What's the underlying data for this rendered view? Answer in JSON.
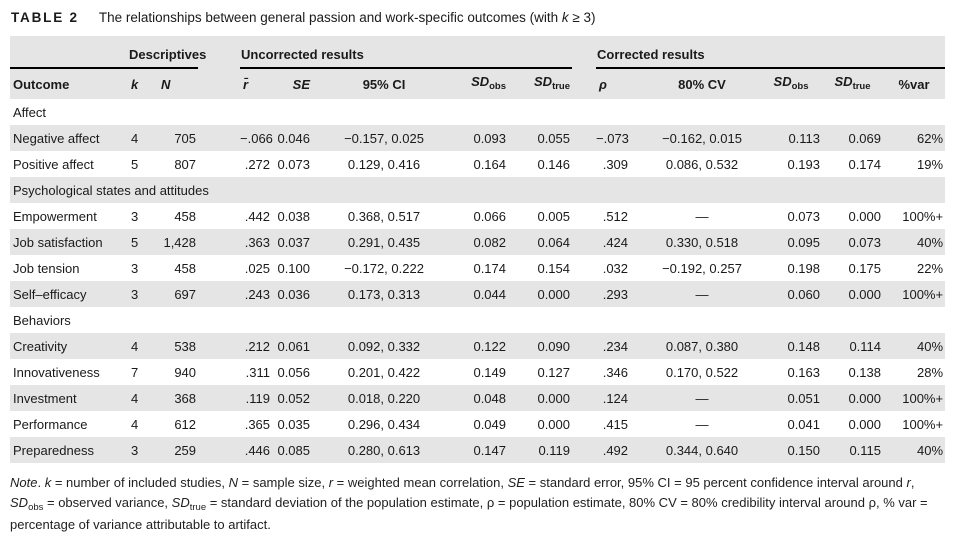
{
  "title": {
    "label": "TABLE 2",
    "caption_segments": [
      {
        "t": "The relationships between general passion and work-specific outcomes (with "
      },
      {
        "t": "k",
        "i": true
      },
      {
        "t": " ≥ 3)"
      }
    ]
  },
  "table": {
    "group_headers": {
      "descriptives": "Descriptives",
      "uncorrected": "Uncorrected results",
      "corrected": "Corrected results"
    },
    "column_headers": {
      "outcome": "Outcome",
      "k": "k",
      "n": "N",
      "r_bar": "r̄",
      "se": "SE",
      "ci95": "95% CI",
      "sd": "SD",
      "sub_obs": "obs",
      "sub_true": "true",
      "rho": "ρ",
      "cv80": "80% CV",
      "pct_var": "%var"
    },
    "sections": [
      {
        "label": "Affect",
        "rows": [
          {
            "outcome": "Negative affect",
            "k": "4",
            "n": "705",
            "r": "−.066",
            "se": "0.046",
            "ci": "−0.157, 0.025",
            "sd_obs_u": "0.093",
            "sd_true_u": "0.055",
            "rho": "−.073",
            "cv": "−0.162, 0.015",
            "sd_obs_c": "0.113",
            "sd_true_c": "0.069",
            "pct_var": "62%"
          },
          {
            "outcome": "Positive affect",
            "k": "5",
            "n": "807",
            "r": ".272",
            "se": "0.073",
            "ci": "0.129, 0.416",
            "sd_obs_u": "0.164",
            "sd_true_u": "0.146",
            "rho": ".309",
            "cv": "0.086, 0.532",
            "sd_obs_c": "0.193",
            "sd_true_c": "0.174",
            "pct_var": "19%"
          }
        ]
      },
      {
        "label": "Psychological states and attitudes",
        "rows": [
          {
            "outcome": "Empowerment",
            "k": "3",
            "n": "458",
            "r": ".442",
            "se": "0.038",
            "ci": "0.368, 0.517",
            "sd_obs_u": "0.066",
            "sd_true_u": "0.005",
            "rho": ".512",
            "cv": "—",
            "sd_obs_c": "0.073",
            "sd_true_c": "0.000",
            "pct_var": "100%+"
          },
          {
            "outcome": "Job satisfaction",
            "k": "5",
            "n": "1,428",
            "r": ".363",
            "se": "0.037",
            "ci": "0.291, 0.435",
            "sd_obs_u": "0.082",
            "sd_true_u": "0.064",
            "rho": ".424",
            "cv": "0.330, 0.518",
            "sd_obs_c": "0.095",
            "sd_true_c": "0.073",
            "pct_var": "40%"
          },
          {
            "outcome": "Job tension",
            "k": "3",
            "n": "458",
            "r": ".025",
            "se": "0.100",
            "ci": "−0.172, 0.222",
            "sd_obs_u": "0.174",
            "sd_true_u": "0.154",
            "rho": ".032",
            "cv": "−0.192, 0.257",
            "sd_obs_c": "0.198",
            "sd_true_c": "0.175",
            "pct_var": "22%"
          },
          {
            "outcome": "Self–efficacy",
            "k": "3",
            "n": "697",
            "r": ".243",
            "se": "0.036",
            "ci": "0.173, 0.313",
            "sd_obs_u": "0.044",
            "sd_true_u": "0.000",
            "rho": ".293",
            "cv": "—",
            "sd_obs_c": "0.060",
            "sd_true_c": "0.000",
            "pct_var": "100%+"
          }
        ]
      },
      {
        "label": "Behaviors",
        "rows": [
          {
            "outcome": "Creativity",
            "k": "4",
            "n": "538",
            "r": ".212",
            "se": "0.061",
            "ci": "0.092, 0.332",
            "sd_obs_u": "0.122",
            "sd_true_u": "0.090",
            "rho": ".234",
            "cv": "0.087, 0.380",
            "sd_obs_c": "0.148",
            "sd_true_c": "0.114",
            "pct_var": "40%"
          },
          {
            "outcome": "Innovativeness",
            "k": "7",
            "n": "940",
            "r": ".311",
            "se": "0.056",
            "ci": "0.201, 0.422",
            "sd_obs_u": "0.149",
            "sd_true_u": "0.127",
            "rho": ".346",
            "cv": "0.170, 0.522",
            "sd_obs_c": "0.163",
            "sd_true_c": "0.138",
            "pct_var": "28%"
          },
          {
            "outcome": "Investment",
            "k": "4",
            "n": "368",
            "r": ".119",
            "se": "0.052",
            "ci": "0.018, 0.220",
            "sd_obs_u": "0.048",
            "sd_true_u": "0.000",
            "rho": ".124",
            "cv": "—",
            "sd_obs_c": "0.051",
            "sd_true_c": "0.000",
            "pct_var": "100%+"
          },
          {
            "outcome": "Performance",
            "k": "4",
            "n": "612",
            "r": ".365",
            "se": "0.035",
            "ci": "0.296, 0.434",
            "sd_obs_u": "0.049",
            "sd_true_u": "0.000",
            "rho": ".415",
            "cv": "—",
            "sd_obs_c": "0.041",
            "sd_true_c": "0.000",
            "pct_var": "100%+"
          },
          {
            "outcome": "Preparedness",
            "k": "3",
            "n": "259",
            "r": ".446",
            "se": "0.085",
            "ci": "0.280, 0.613",
            "sd_obs_u": "0.147",
            "sd_true_u": "0.119",
            "rho": ".492",
            "cv": "0.344, 0.640",
            "sd_obs_c": "0.150",
            "sd_true_c": "0.115",
            "pct_var": "40%"
          }
        ]
      }
    ]
  },
  "note": {
    "segments": [
      {
        "t": "Note",
        "i": true
      },
      {
        "t": ". "
      },
      {
        "t": "k",
        "i": true
      },
      {
        "t": " = number of included studies, "
      },
      {
        "t": "N",
        "i": true
      },
      {
        "t": " = sample size, "
      },
      {
        "t": "r",
        "i": true
      },
      {
        "t": " = weighted mean correlation, "
      },
      {
        "t": "SE",
        "i": true
      },
      {
        "t": " = standard error, 95% CI = 95 percent confidence interval around "
      },
      {
        "t": "r",
        "i": true
      },
      {
        "t": ", "
      },
      {
        "t": "SD",
        "i": true
      },
      {
        "t": "obs",
        "sub": true
      },
      {
        "t": " = observed variance, "
      },
      {
        "t": "SD",
        "i": true
      },
      {
        "t": "true",
        "sub": true
      },
      {
        "t": " = standard deviation of the population estimate, ρ = population estimate, 80% CV = 80% credibility interval around ρ, % var = percentage of variance attributable to artifact."
      }
    ]
  }
}
